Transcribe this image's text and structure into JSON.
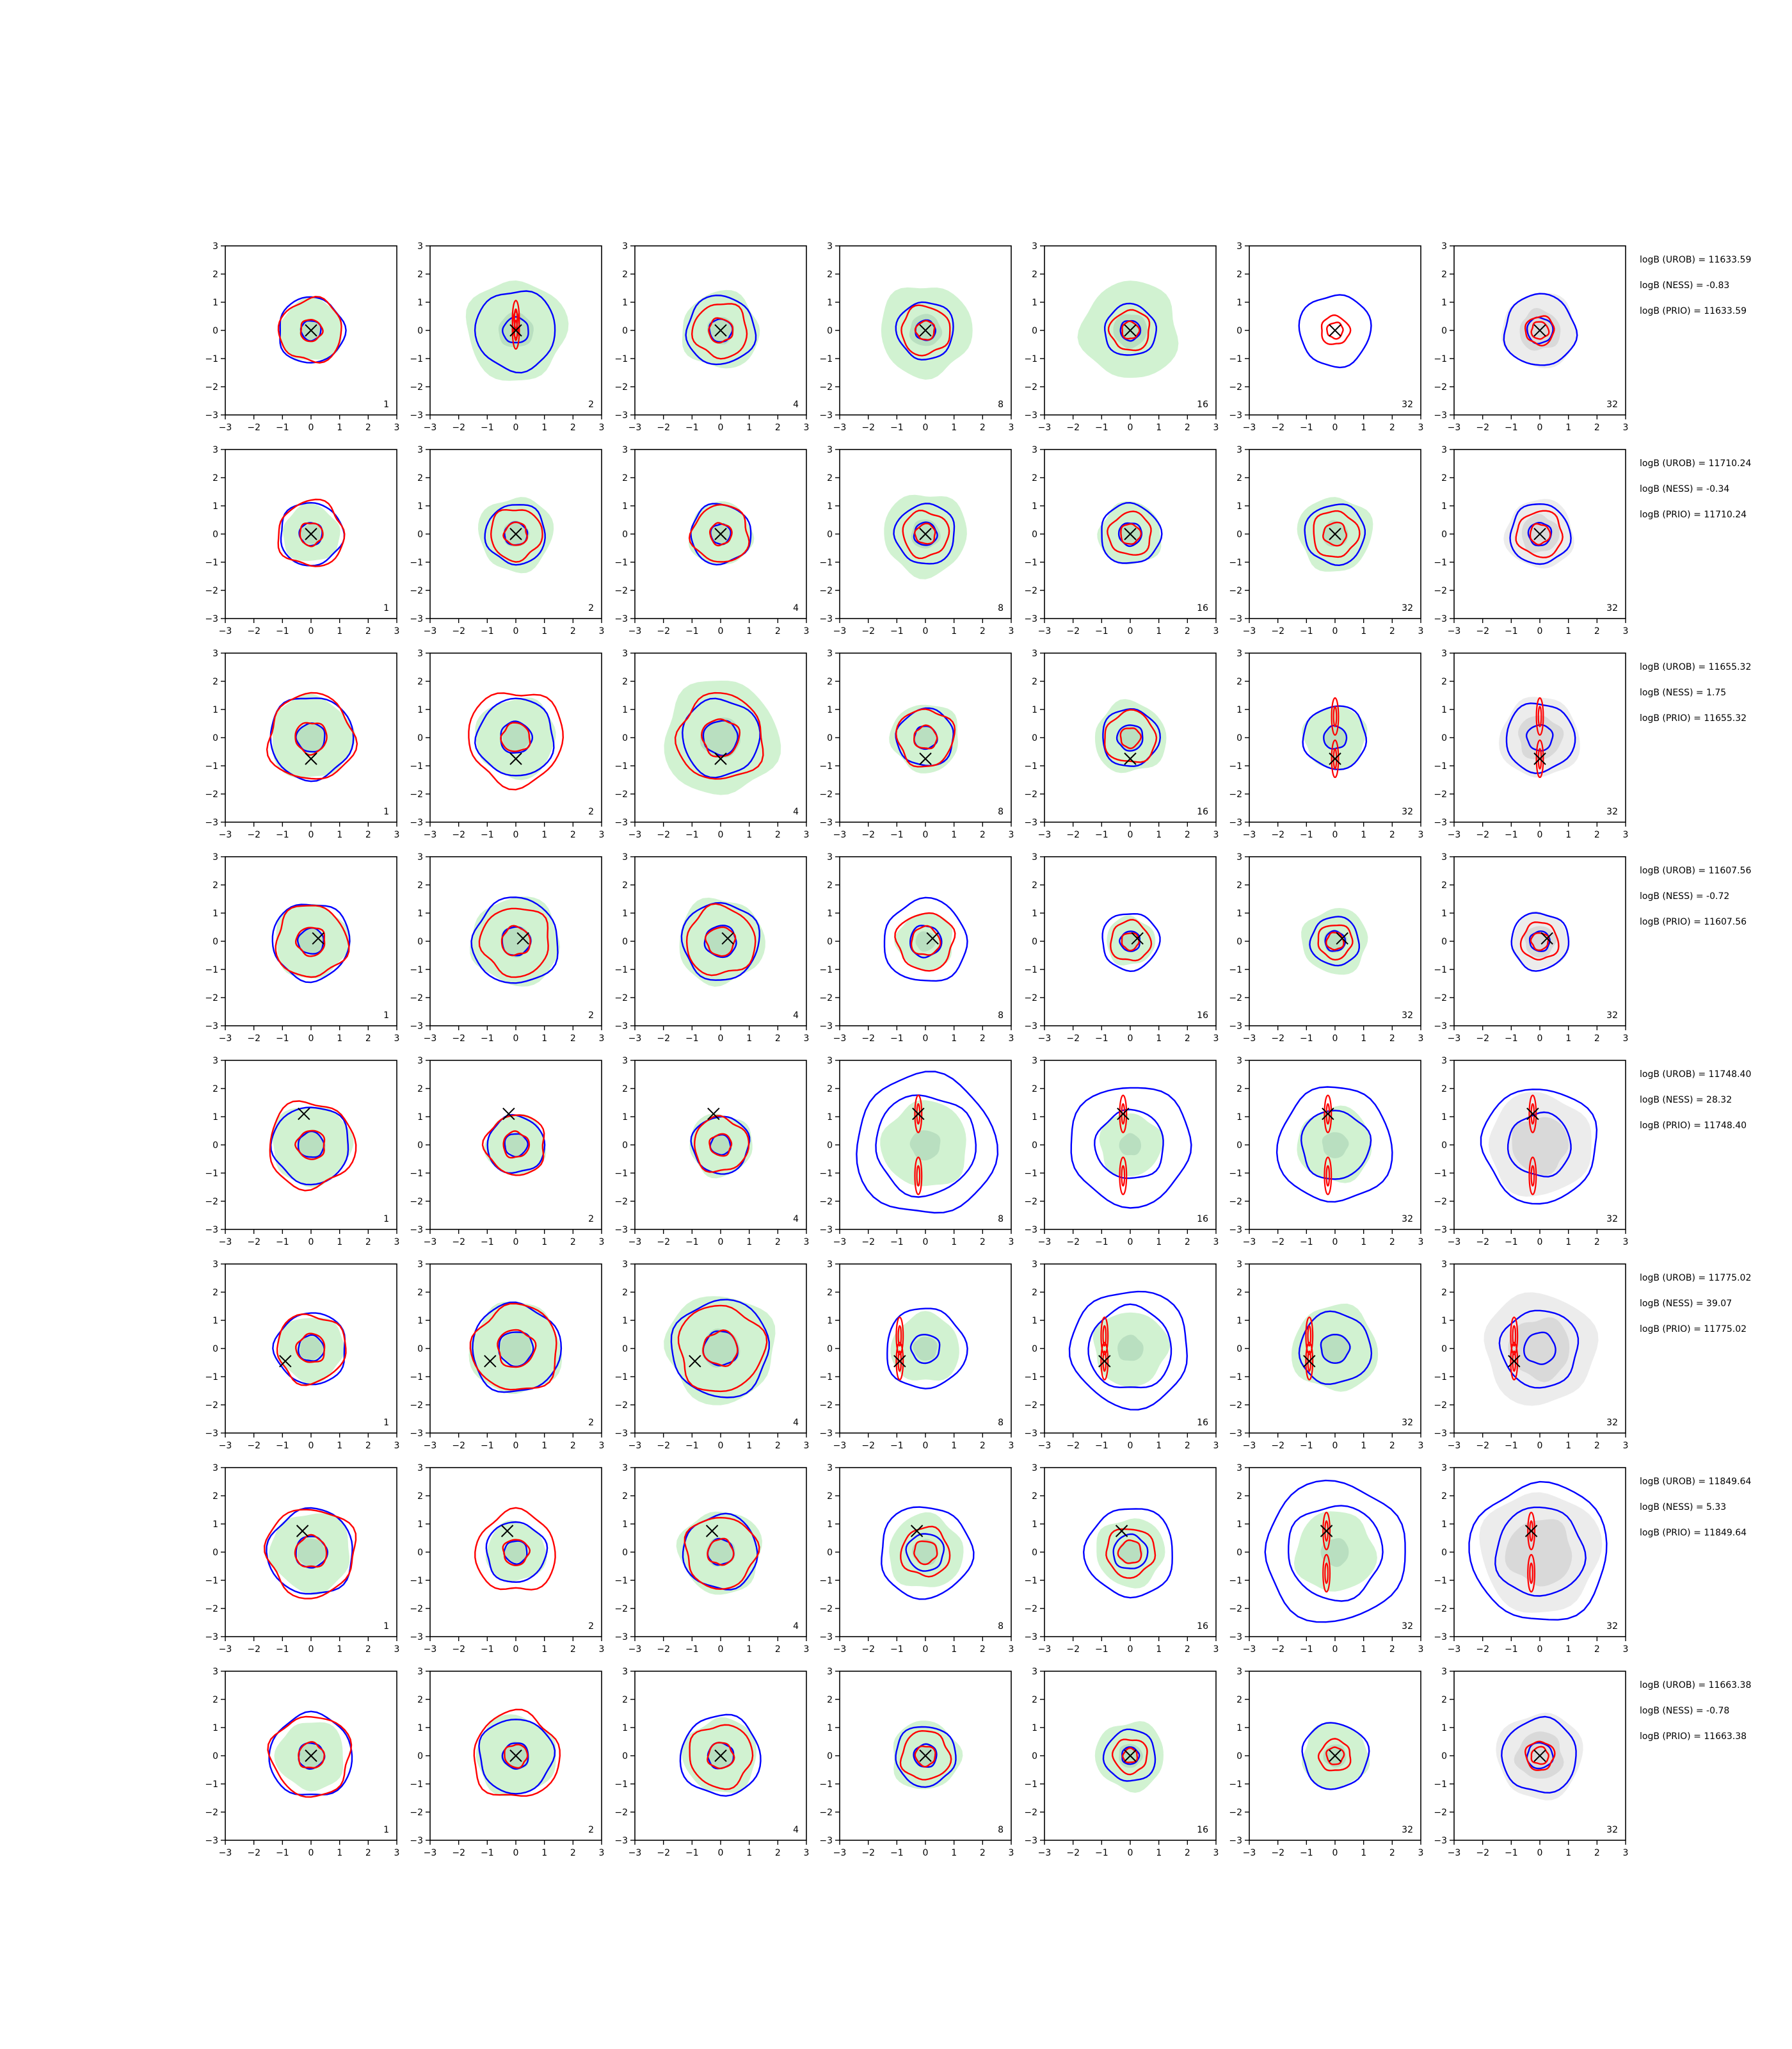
{
  "chart_data": {
    "type": "contour-grid",
    "rows": 8,
    "cols": 7,
    "xlim": [
      -3,
      3
    ],
    "ylim": [
      -3,
      3
    ],
    "ticks": [
      "−3",
      "−2",
      "−1",
      "0",
      "1",
      "2",
      "3"
    ],
    "panel_counts": [
      "1",
      "2",
      "4",
      "8",
      "16",
      "32",
      "32"
    ],
    "colors": {
      "fill": "#d1f2d1",
      "fill_inner": "#b9dfc0",
      "prior_fill": "#ececec",
      "prior_inner": "#d9d9d9",
      "blue": "#0000ff",
      "red": "#ff0000",
      "marker": "#000000"
    },
    "row_data": [
      {
        "annotations": [
          "logB (UROB) = 11633.59",
          "logB (NESS) = -0.83",
          "logB (PRIO) = 11633.59"
        ],
        "marker": [
          0.0,
          0.0
        ],
        "panels": [
          {
            "fill_r": 1.1,
            "blue": [
              1.15,
              0.35
            ],
            "red": [
              1.1,
              0.38
            ]
          },
          {
            "fill_r": 1.75,
            "blue": [
              1.4,
              0.45
            ],
            "red": [
              0
            ]
          },
          {
            "fill_r": 1.35,
            "blue": [
              1.2,
              0.4
            ],
            "red": [
              0.95,
              0.42
            ]
          },
          {
            "fill_r": 1.6,
            "blue": [
              1.0,
              0.35
            ],
            "red": [
              0.85,
              0.33
            ]
          },
          {
            "fill_r": 1.7,
            "blue": [
              0.9,
              0.35
            ],
            "red": [
              0.7,
              0.3
            ]
          },
          {
            "fill_r": 0.0,
            "blue": [
              1.25
            ],
            "red": [
              0.5,
              0.28
            ]
          },
          {
            "fill_r": 0.0,
            "prior_r": 1.3,
            "blue": [
              1.25,
              0.45
            ],
            "red": [
              0.5,
              0.3
            ]
          }
        ]
      },
      {
        "annotations": [
          "logB (UROB) = 11710.24",
          "logB (NESS) = -0.34",
          "logB (PRIO) = 11710.24"
        ],
        "marker": [
          0.0,
          0.0
        ],
        "panels": [
          {
            "fill_r": 1.0,
            "blue": [
              1.1,
              0.4
            ],
            "red": [
              1.15,
              0.4
            ]
          },
          {
            "fill_r": 1.3,
            "blue": [
              1.05,
              0.4
            ],
            "red": [
              0.9,
              0.4
            ]
          },
          {
            "fill_r": 1.1,
            "blue": [
              1.05,
              0.35
            ],
            "red": [
              1.0,
              0.38
            ]
          },
          {
            "fill_r": 1.45,
            "blue": [
              1.05,
              0.4
            ],
            "red": [
              0.8,
              0.35
            ]
          },
          {
            "fill_r": 1.1,
            "blue": [
              1.05,
              0.4
            ],
            "red": [
              0.75,
              0.35
            ]
          },
          {
            "fill_r": 1.3,
            "blue": [
              1.05
            ],
            "red": [
              0.8,
              0.4
            ]
          },
          {
            "fill_r": 0.0,
            "prior_r": 1.2,
            "blue": [
              1.05,
              0.4
            ],
            "red": [
              0.8,
              0.35
            ]
          }
        ]
      },
      {
        "annotations": [
          "logB (UROB) = 11655.32",
          "logB (NESS) = 1.75",
          "logB (PRIO) = 11655.32"
        ],
        "marker": [
          0.0,
          -0.75
        ],
        "panels": [
          {
            "fill_r": 1.45,
            "blue": [
              1.45,
              0.5
            ],
            "red": [
              1.5,
              0.55
            ]
          },
          {
            "fill_r": 1.4,
            "blue": [
              1.35,
              0.55
            ],
            "red": [
              1.65,
              0.5
            ]
          },
          {
            "fill_r": 2.0,
            "blue": [
              1.35,
              0.6
            ],
            "red": [
              1.5,
              0.65
            ]
          },
          {
            "fill_r": 1.2,
            "blue": [
              1.0,
              0.4
            ],
            "red": [
              1.0,
              0.4
            ]
          },
          {
            "fill_r": 1.25,
            "blue": [
              1.0,
              0.45
            ],
            "red": [
              0.9,
              0.35
            ]
          },
          {
            "fill_r": 1.1,
            "blue": [
              1.1,
              0.4
            ],
            "red": [
              0
            ]
          },
          {
            "fill_r": 0.0,
            "prior_r": 1.4,
            "blue": [
              1.2,
              0.45
            ],
            "red": [
              0
            ]
          }
        ]
      },
      {
        "annotations": [
          "logB (UROB) = 11607.56",
          "logB (NESS) = -0.72",
          "logB (PRIO) = 11607.56"
        ],
        "marker": [
          0.25,
          0.1
        ],
        "panels": [
          {
            "fill_r": 1.3,
            "blue": [
              1.35,
              0.45
            ],
            "red": [
              1.25,
              0.5
            ]
          },
          {
            "fill_r": 1.55,
            "blue": [
              1.5,
              0.5
            ],
            "red": [
              1.2,
              0.5
            ]
          },
          {
            "fill_r": 1.5,
            "blue": [
              1.35,
              0.55
            ],
            "red": [
              1.2,
              0.5
            ]
          },
          {
            "fill_r": 1.0,
            "blue": [
              1.45,
              0.55
            ],
            "red": [
              1.0,
              0.5
            ]
          },
          {
            "fill_r": 0.85,
            "blue": [
              1.0,
              0.35
            ],
            "red": [
              0.7,
              0.3
            ]
          },
          {
            "fill_r": 1.15,
            "blue": [
              0.85,
              0.35
            ],
            "red": [
              0.6,
              0.3
            ]
          },
          {
            "fill_r": 0.0,
            "prior_r": 1.0,
            "blue": [
              1.0,
              0.35
            ],
            "red": [
              0.65,
              0.3
            ]
          }
        ]
      },
      {
        "annotations": [
          "logB (UROB) = 11748.40",
          "logB (NESS) = 28.32",
          "logB (PRIO) = 11748.40"
        ],
        "marker": [
          -0.25,
          1.1
        ],
        "panels": [
          {
            "fill_r": 1.4,
            "blue": [
              1.35,
              0.45
            ],
            "red": [
              1.5,
              0.5
            ]
          },
          {
            "fill_r": 1.05,
            "blue": [
              1.0,
              0.4
            ],
            "red": [
              1.05,
              0.45
            ]
          },
          {
            "fill_r": 1.1,
            "blue": [
              1.0,
              0.35
            ],
            "red": [
              0.95,
              0.38
            ]
          },
          {
            "fill_r": 1.5,
            "blue": [
              2.45,
              1.75
            ],
            "red": [
              0
            ]
          },
          {
            "fill_r": 1.1,
            "blue": [
              2.1,
              1.2
            ],
            "red": [
              0
            ]
          },
          {
            "fill_r": 1.3,
            "blue": [
              2.0,
              1.2
            ],
            "red": [
              0
            ]
          },
          {
            "fill_r": 0.0,
            "prior_r": 1.8,
            "blue": [
              2.0,
              1.1
            ],
            "red": [
              0
            ]
          }
        ]
      },
      {
        "annotations": [
          "logB (UROB) = 11775.02",
          "logB (NESS) = 39.07",
          "logB (PRIO) = 11775.02"
        ],
        "marker": [
          -0.9,
          -0.45
        ],
        "panels": [
          {
            "fill_r": 1.15,
            "blue": [
              1.25,
              0.45
            ],
            "red": [
              1.2,
              0.5
            ]
          },
          {
            "fill_r": 1.6,
            "blue": [
              1.55,
              0.6
            ],
            "red": [
              1.5,
              0.65
            ]
          },
          {
            "fill_r": 1.9,
            "blue": [
              1.7,
              0.6
            ],
            "red": [
              1.5,
              0.6
            ]
          },
          {
            "fill_r": 1.2,
            "blue": [
              1.4,
              0.5
            ],
            "red": [
              0
            ]
          },
          {
            "fill_r": 1.3,
            "blue": [
              2.05,
              1.45
            ],
            "red": [
              0
            ]
          },
          {
            "fill_r": 1.5,
            "blue": [
              1.25,
              0.5
            ],
            "red": [
              0
            ]
          },
          {
            "fill_r": 0.0,
            "prior_r": 1.95,
            "blue": [
              1.35,
              0.55
            ],
            "red": [
              0
            ]
          }
        ]
      },
      {
        "annotations": [
          "logB (UROB) = 11849.64",
          "logB (NESS) = 5.33",
          "logB (PRIO) = 11849.64"
        ],
        "marker": [
          -0.3,
          0.75
        ],
        "panels": [
          {
            "fill_r": 1.4,
            "blue": [
              1.5,
              0.55
            ],
            "red": [
              1.55,
              0.55
            ]
          },
          {
            "fill_r": 1.05,
            "blue": [
              1.05,
              0.4
            ],
            "red": [
              1.4,
              0.45
            ]
          },
          {
            "fill_r": 1.45,
            "blue": [
              1.3,
              0.45
            ],
            "red": [
              1.25,
              0.45
            ]
          },
          {
            "fill_r": 1.3,
            "blue": [
              1.6,
              0.65
            ],
            "red": [
              0.85,
              0.4
            ]
          },
          {
            "fill_r": 1.2,
            "blue": [
              1.55,
              0.6
            ],
            "red": [
              0.85,
              0.4
            ]
          },
          {
            "fill_r": 1.4,
            "blue": [
              2.45,
              1.65
            ],
            "red": [
              0
            ]
          },
          {
            "fill_r": 0.0,
            "prior_r": 2.1,
            "blue": [
              2.4,
              1.55
            ],
            "red": [
              0
            ]
          }
        ]
      },
      {
        "annotations": [
          "logB (UROB) = 11663.38",
          "logB (NESS) = -0.78",
          "logB (PRIO) = 11663.38"
        ],
        "marker": [
          0.0,
          0.0
        ],
        "panels": [
          {
            "fill_r": 1.2,
            "blue": [
              1.45,
              0.45
            ],
            "red": [
              1.4,
              0.45
            ]
          },
          {
            "fill_r": 1.4,
            "blue": [
              1.3,
              0.45
            ],
            "red": [
              1.5,
              0.4
            ]
          },
          {
            "fill_r": 1.3,
            "blue": [
              1.4,
              0.45
            ],
            "red": [
              1.1,
              0.45
            ]
          },
          {
            "fill_r": 1.2,
            "blue": [
              1.05,
              0.4
            ],
            "red": [
              0.85,
              0.35
            ]
          },
          {
            "fill_r": 1.2,
            "blue": [
              0.9,
              0.3
            ],
            "red": [
              0.6,
              0.25
            ]
          },
          {
            "fill_r": 1.15,
            "blue": [
              1.15
            ],
            "red": [
              0.55,
              0.3
            ]
          },
          {
            "fill_r": 0.0,
            "prior_r": 1.5,
            "blue": [
              1.3,
              0.45
            ],
            "red": [
              0.5,
              0.3
            ]
          }
        ]
      }
    ]
  }
}
